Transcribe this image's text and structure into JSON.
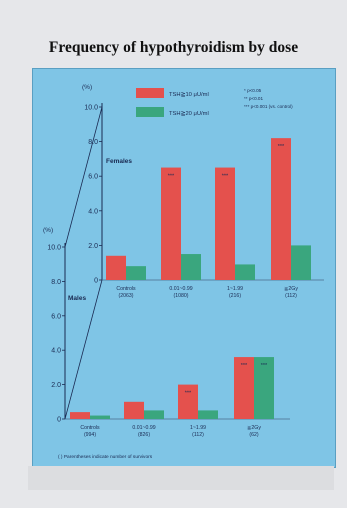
{
  "title": "Frequency of hypothyroidism by dose",
  "colors": {
    "red_series": "#e4514d",
    "green_series": "#3aa67e",
    "panel_bg": "#7fc5e6"
  },
  "legend": {
    "series": [
      "TSH≧10 μU/ml",
      "TSH≧20 μU/ml"
    ],
    "significance": [
      "* p<0.05",
      "** p<0.01",
      "*** p<0.001 (vs. control)"
    ]
  },
  "footnote": "( ) Parentheses indicate number of survivors",
  "chart_data": [
    {
      "type": "bar",
      "panel": "Females",
      "ylabel": "(%)",
      "ylim": [
        0,
        10
      ],
      "yticks": [
        "0",
        "2.0",
        "4.0",
        "6.0",
        "8.0",
        "10.0"
      ],
      "categories": [
        "Controls",
        "0.01~0.99",
        "1~1.99",
        "≧2Gy"
      ],
      "category_counts": [
        "(2063)",
        "(1080)",
        "(216)",
        "(112)"
      ],
      "series": [
        {
          "name": "TSH≧10 μU/ml",
          "values": [
            1.4,
            6.5,
            6.5,
            8.2
          ],
          "marks": [
            "",
            "***",
            "***",
            "***"
          ]
        },
        {
          "name": "TSH≧20 μU/ml",
          "values": [
            0.8,
            1.5,
            0.9,
            2.0
          ],
          "marks": [
            "",
            "",
            "",
            ""
          ]
        }
      ]
    },
    {
      "type": "bar",
      "panel": "Males",
      "ylabel": "(%)",
      "ylim": [
        0,
        10
      ],
      "yticks": [
        "0",
        "2.0",
        "4.0",
        "6.0",
        "8.0",
        "10.0"
      ],
      "categories": [
        "Controls",
        "0.01~0.99",
        "1~1.99",
        "≧2Gy"
      ],
      "category_counts": [
        "(994)",
        "(826)",
        "(112)",
        "(62)"
      ],
      "series": [
        {
          "name": "TSH≧10 μU/ml",
          "values": [
            0.4,
            1.0,
            2.0,
            3.6
          ],
          "marks": [
            "",
            "",
            "***",
            "***"
          ]
        },
        {
          "name": "TSH≧20 μU/ml",
          "values": [
            0.2,
            0.5,
            0.5,
            3.6
          ],
          "marks": [
            "",
            "",
            "",
            "***"
          ]
        }
      ]
    }
  ]
}
